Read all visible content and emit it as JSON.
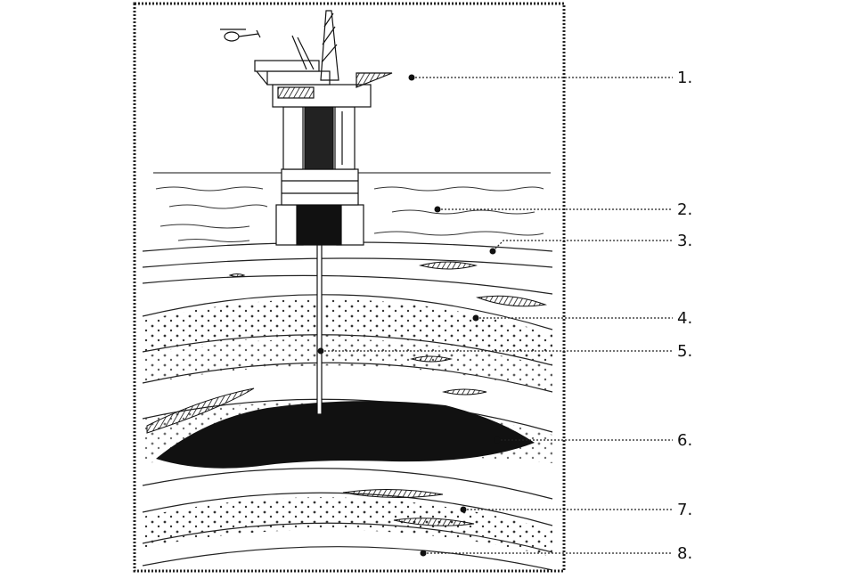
{
  "labels": [
    {
      "id": "1",
      "text": "1."
    },
    {
      "id": "2",
      "text": "2."
    },
    {
      "id": "3",
      "text": "3."
    },
    {
      "id": "4",
      "text": "4."
    },
    {
      "id": "5",
      "text": "5."
    },
    {
      "id": "6",
      "text": "6."
    },
    {
      "id": "7",
      "text": "7."
    },
    {
      "id": "8",
      "text": "8."
    }
  ],
  "parts": {
    "1": "oil-platform",
    "2": "sea-water",
    "3": "sea-floor-sediment",
    "4": "porous-rock-layer",
    "5": "drill-pipe",
    "6": "oil-reservoir",
    "7": "impermeable-rock-layer",
    "8": "lower-porous-rock"
  },
  "colors": {
    "ink": "#111111",
    "paper": "#ffffff",
    "oil": "#111111",
    "frame": "#222222"
  }
}
